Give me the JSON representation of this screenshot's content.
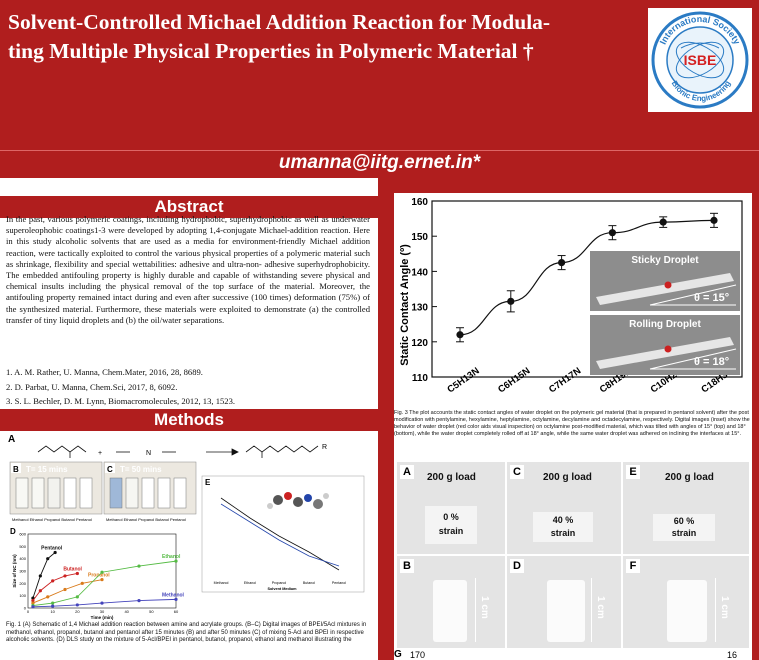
{
  "header": {
    "title": "Solvent-Controlled Michael Addition Reaction for Modulating Multiple Physical Properties in Polymeric Material †",
    "title_line1": "Solvent-Controlled Michael Addition Reaction for Modula-",
    "title_line2": "ting Multiple Physical Properties in Polymeric Material †",
    "email": "umanna@iitg.ernet.in*",
    "logo": {
      "top_text": "International Society",
      "center_text": "ISBE",
      "bottom_text": "Bionic Engineering"
    }
  },
  "abstract": {
    "heading": "Abstract",
    "text": "In the past, various polymeric coatings, including hydrophobic, superhydrophobic as well as underwater superoleophobic coatings1-3 were developed by adopting 1,4-conjugate Michael-addition reaction. Here in this study alcoholic solvents that are used as a media for environment-friendly Michael addition reaction, were tactically exploited to control the various physical properties of a polymeric material such as shrinkage, flexibility and special wettabilities: adhesive and ultra-non- adhesive superhydrophobicity. The embedded antifouling property is highly durable and capable of withstanding severe physical and chemical insults including the physical removal of the top surface of the material. Moreover, the antifouling property remained intact during and even after successive (100 times) deformation (75%) of the synthesized material. Furthermore, these materials were exploited to demonstrate (a) the controlled transfer of tiny liquid droplets and (b) the oil/water separations.",
    "references": [
      "1.  A. M. Rather, U. Manna, Chem.Mater, 2016, 28, 8689.",
      "2.  D. Parbat, U. Manna, Chem.Sci, 2017, 8, 6092.",
      "3. S. L. Bechler, D. M. Lynn, Biomacromolecules, 2012, 13, 1523."
    ]
  },
  "methods": {
    "heading": "Methods",
    "panel_a_label": "A",
    "panel_b": {
      "label": "B",
      "time": "T= 15 mins",
      "caption": "Methanol Ethanol Propanol Butanol Pentanol"
    },
    "panel_c": {
      "label": "C",
      "time": "T= 50 mins",
      "caption": "Methanol Ethanol Propanol Butanol Pentanol"
    },
    "panel_d": {
      "label": "D",
      "ylabel": "Size of NC (nm)",
      "xlabel": "Time (min)",
      "series_labels": [
        "Pentanol",
        "Butanol",
        "Propanol",
        "Ethanol",
        "Methanol"
      ]
    },
    "panel_e": {
      "label": "E",
      "xlabel": "Solvent Medium",
      "categories": [
        "Methanol",
        "Ethanol",
        "Propanol",
        "Butanol",
        "Pentanol"
      ]
    },
    "fig_caption": "Fig. 1 (A) Schematic of 1,4 Michael addition reaction between amine and acrylate groups. (B–C) Digital images of BPEI/5Acl mixtures in methanol, ethanol, propanol, butanol and pentanol after 15 minutes (B) and after 50 minutes (C) of mixing 5-Acl and BPEI in respective alcoholic solvents. (D) DLS study on the mixture of 5-Acl/BPEI in pentanol, butanol, propanol, ethanol and methanol illustrating the"
  },
  "chart_data": [
    {
      "type": "line",
      "ylabel": "Static Contact Angle (º)",
      "categories": [
        "C5H13N",
        "C6H15N",
        "C7H17N",
        "C8H19N",
        "C10H23N",
        "C18H39N"
      ],
      "values": [
        122,
        131.5,
        142.5,
        151,
        154,
        154.5
      ],
      "errors": [
        2,
        3,
        2,
        2,
        1.5,
        2
      ],
      "ylim": [
        110,
        160
      ],
      "yticks": [
        110,
        120,
        130,
        140,
        150,
        160
      ],
      "insets": [
        {
          "title": "Sticky Droplet",
          "angle_label": "θ = 15°"
        },
        {
          "title": "Rolling Droplet",
          "angle_label": "θ = 18°"
        }
      ]
    },
    {
      "type": "line",
      "ylabel": "Size of NC (nm)",
      "xlabel": "Time (min)",
      "xticks": [
        0,
        10,
        20,
        30,
        40,
        50,
        60
      ],
      "yticks": [
        0,
        100,
        200,
        300,
        400,
        500,
        600
      ],
      "series": [
        {
          "name": "Pentanol",
          "x": [
            2,
            5,
            8,
            11
          ],
          "values": [
            80,
            260,
            400,
            450
          ],
          "color": "#111111"
        },
        {
          "name": "Butanol",
          "x": [
            2,
            5,
            10,
            15,
            20
          ],
          "values": [
            60,
            140,
            220,
            260,
            280
          ],
          "color": "#cc2222"
        },
        {
          "name": "Propanol",
          "x": [
            2,
            8,
            15,
            22,
            30
          ],
          "values": [
            40,
            90,
            150,
            200,
            230
          ],
          "color": "#d97a1a"
        },
        {
          "name": "Ethanol",
          "x": [
            2,
            10,
            20,
            30,
            45,
            60
          ],
          "values": [
            20,
            40,
            90,
            290,
            340,
            380
          ],
          "color": "#55bb44"
        },
        {
          "name": "Methanol",
          "x": [
            2,
            10,
            20,
            30,
            45,
            60
          ],
          "values": [
            10,
            15,
            25,
            40,
            60,
            70
          ],
          "color": "#4444bb"
        }
      ]
    }
  ],
  "chart_caption": "Fig. 3 The plot accounts the static contact angles of water droplet on the polymeric gel material (that is prepared in pentanol solvent) after the post modification with pentylamine, hexylamine, heptylamine, octylamine, decylamine and octadecylamine, respectively. Digital images (inset) show the behavior of water droplet (red color aids visual inspection) on octylamine post-modified material, which was tilted with angles of 15° (top) and 18° (bottom), while the water droplet completely rolled off at 18° angle, while the same water droplet was adhered on inclining the interfaces at 15°.",
  "compression": {
    "panels": [
      {
        "label": "A",
        "load": "200 g load",
        "strain": "0 %\nstrain"
      },
      {
        "label": "C",
        "load": "200 g load",
        "strain": "40 %\nstrain"
      },
      {
        "label": "E",
        "load": "200 g load",
        "strain": "60 %\nstrain"
      },
      {
        "label": "B",
        "dim": "1 cm"
      },
      {
        "label": "D",
        "dim": "1 cm"
      },
      {
        "label": "F",
        "dim": "1 cm"
      }
    ],
    "bottom_label": "G",
    "bottom_left_value": "170",
    "bottom_right_value": "16"
  }
}
